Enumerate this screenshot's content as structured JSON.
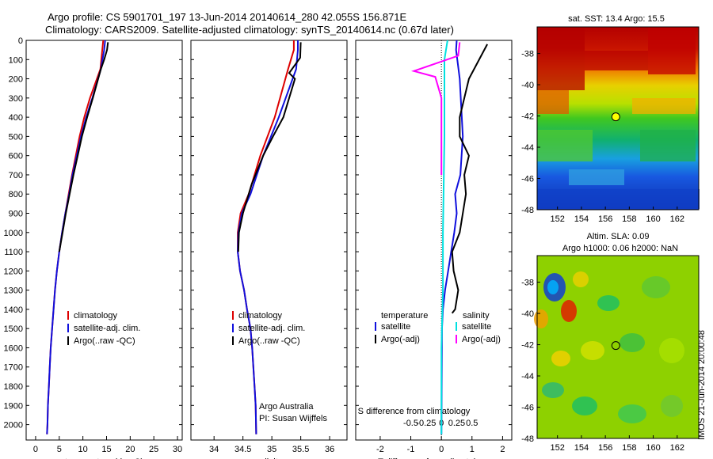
{
  "header": {
    "line1": "Argo profile: CS 5901701_197 13-Jun-2014 20140614_280 42.055S 156.871E",
    "line2": "Climatology: CARS2009. Satellite-adjusted climatology: synTS_20140614.nc (0.67d later)"
  },
  "watermark": "IMOS 21-Jun-2014 20:00:48",
  "colors": {
    "climatology": "#dd0000",
    "satellite": "#1010dd",
    "argo": "#000000",
    "sat_salinity": "#00e0e0",
    "argo_salinity": "#ff00ff",
    "marker": "#ffff00"
  },
  "chart_data": [
    {
      "id": "temperature",
      "type": "line",
      "xlabel": "temperature (deg C)",
      "xlim": [
        -2,
        31
      ],
      "ylim": [
        2080,
        0
      ],
      "xticks": [
        "0",
        "5",
        "10",
        "15",
        "20",
        "25",
        "30"
      ],
      "yticks": [
        "0",
        "100",
        "200",
        "300",
        "400",
        "500",
        "600",
        "700",
        "800",
        "900",
        "1000",
        "1100",
        "1200",
        "1300",
        "1400",
        "1500",
        "1600",
        "1700",
        "1800",
        "1900",
        "2000"
      ],
      "legend": [
        "climatology",
        "satellite-adj. clim.",
        "Argo(..raw -QC)"
      ],
      "series": [
        {
          "name": "climatology",
          "x": [
            14.3,
            14.1,
            13.7,
            11.5,
            10.3,
            9.3,
            8.5,
            7.7,
            7.0,
            6.3,
            5.6,
            5.0,
            4.5,
            4.1,
            3.8,
            3.5,
            3.2,
            3.0,
            2.8,
            2.6,
            2.5,
            2.4
          ],
          "y": [
            0,
            50,
            150,
            300,
            400,
            500,
            600,
            700,
            800,
            900,
            1000,
            1100,
            1200,
            1300,
            1400,
            1500,
            1600,
            1700,
            1800,
            1900,
            2000,
            2050
          ]
        },
        {
          "name": "satellite-adj. clim.",
          "x": [
            14.7,
            14.5,
            13.8,
            12.0,
            10.7,
            9.6,
            8.7,
            7.8,
            7.1,
            6.3,
            5.6,
            5.0,
            4.5,
            4.1,
            3.8,
            3.5,
            3.2,
            3.0,
            2.8,
            2.6,
            2.5,
            2.4
          ],
          "y": [
            0,
            50,
            150,
            300,
            400,
            500,
            600,
            700,
            800,
            900,
            1000,
            1100,
            1200,
            1300,
            1400,
            1500,
            1600,
            1700,
            1800,
            1900,
            2000,
            2050
          ]
        },
        {
          "name": "Argo(..raw -QC)",
          "x": [
            15.3,
            15.1,
            14.5,
            13.8,
            12.1,
            10.9,
            9.8,
            8.9,
            8.0,
            7.2,
            6.4,
            5.7,
            5.0
          ],
          "y": [
            10,
            50,
            100,
            150,
            300,
            400,
            500,
            600,
            700,
            800,
            900,
            1000,
            1100
          ]
        }
      ]
    },
    {
      "id": "salinity",
      "type": "line",
      "xlabel": "salinity",
      "xlim": [
        33.6,
        36.3
      ],
      "ylim": [
        2080,
        0
      ],
      "xticks": [
        "34",
        "34.5",
        "35",
        "35.5",
        "36"
      ],
      "legend": [
        "climatology",
        "satellite-adj. clim.",
        "Argo(..raw -QC)"
      ],
      "annotation": [
        "Argo Australia",
        "PI: Susan Wijffels"
      ],
      "series": [
        {
          "name": "climatology",
          "x": [
            35.38,
            35.38,
            35.28,
            35.05,
            34.8,
            34.6,
            34.46,
            34.41,
            34.41,
            34.45,
            34.52,
            34.57,
            34.63,
            34.66,
            34.68,
            34.7,
            34.72,
            34.73
          ],
          "y": [
            0,
            50,
            150,
            400,
            600,
            800,
            900,
            1000,
            1100,
            1200,
            1300,
            1400,
            1500,
            1600,
            1700,
            1800,
            1900,
            2050
          ]
        },
        {
          "name": "satellite-adj. clim.",
          "x": [
            35.45,
            35.45,
            35.42,
            35.12,
            34.85,
            34.63,
            34.48,
            34.42,
            34.41,
            34.45,
            34.52,
            34.57,
            34.63,
            34.66,
            34.68,
            34.7,
            34.72,
            34.73
          ],
          "y": [
            0,
            50,
            150,
            400,
            600,
            800,
            900,
            1000,
            1100,
            1200,
            1300,
            1400,
            1500,
            1600,
            1700,
            1800,
            1900,
            2050
          ]
        },
        {
          "name": "Argo(..raw -QC)",
          "x": [
            35.5,
            35.49,
            35.3,
            35.4,
            35.2,
            35.02,
            34.85,
            34.65,
            34.5,
            34.43,
            34.42
          ],
          "y": [
            10,
            90,
            170,
            200,
            400,
            500,
            600,
            750,
            900,
            1000,
            1100
          ]
        }
      ]
    },
    {
      "id": "difference",
      "type": "line",
      "xlabel": "T difference from climatology",
      "xlabel_top": "S difference from climatology",
      "xlim": [
        -2.8,
        2.3
      ],
      "ylim": [
        2080,
        0
      ],
      "xticks": [
        "-2",
        "-1",
        "0",
        "1",
        "2"
      ],
      "xticks_top": [
        "-0.5",
        "-0.25",
        "0",
        "0.25",
        "0.5"
      ],
      "legend_titles": [
        "temperature",
        "salinity"
      ],
      "legend": [
        "satellite",
        "Argo(-adj)",
        "satellite",
        "Argo(-adj)"
      ],
      "series": [
        {
          "name": "satellite",
          "x": [
            0.5,
            0.48,
            0.6,
            0.7,
            0.62,
            0.45,
            0.5,
            0.42,
            0.32,
            0.22,
            0.12,
            0.05,
            0.02,
            0
          ],
          "y": [
            0,
            50,
            200,
            500,
            700,
            800,
            900,
            1000,
            1100,
            1200,
            1300,
            1400,
            1500,
            2050
          ]
        },
        {
          "name": "Argo(-adj)",
          "x": [
            1.5,
            1.3,
            0.9,
            0.6,
            0.6,
            0.9,
            0.75,
            0.8,
            0.6,
            0.35,
            0.4,
            0.55,
            0.45,
            0.35
          ],
          "y": [
            20,
            80,
            200,
            400,
            500,
            600,
            700,
            800,
            1000,
            1100,
            1200,
            1300,
            1400,
            1420
          ]
        },
        {
          "name": "satellite",
          "x": [
            0.2,
            0.1,
            0.1,
            0.05,
            0.05,
            0,
            0
          ],
          "y": [
            0,
            100,
            500,
            1000,
            1300,
            1600,
            2050
          ]
        },
        {
          "name": "Argo(-adj)",
          "x": [
            0.6,
            0.55,
            -0.9,
            -0.2,
            0,
            0
          ],
          "y": [
            10,
            80,
            160,
            190,
            300,
            700
          ]
        }
      ]
    }
  ],
  "maps": [
    {
      "id": "sst-map",
      "title": "sat. SST: 13.4 Argo: 15.5",
      "xticks": [
        "152",
        "154",
        "156",
        "158",
        "160",
        "162"
      ],
      "yticks": [
        "-38",
        "-40",
        "-42",
        "-44",
        "-46",
        "-48"
      ]
    },
    {
      "id": "sla-map",
      "title1": "Altim. SLA: 0.09",
      "title2": "Argo h1000: 0.06 h2000: NaN",
      "xticks": [
        "152",
        "154",
        "156",
        "158",
        "160",
        "162"
      ],
      "yticks": [
        "-38",
        "-40",
        "-42",
        "-44",
        "-46",
        "-48"
      ]
    }
  ],
  "float_position": {
    "lon": 156.871,
    "lat": -42.055
  }
}
